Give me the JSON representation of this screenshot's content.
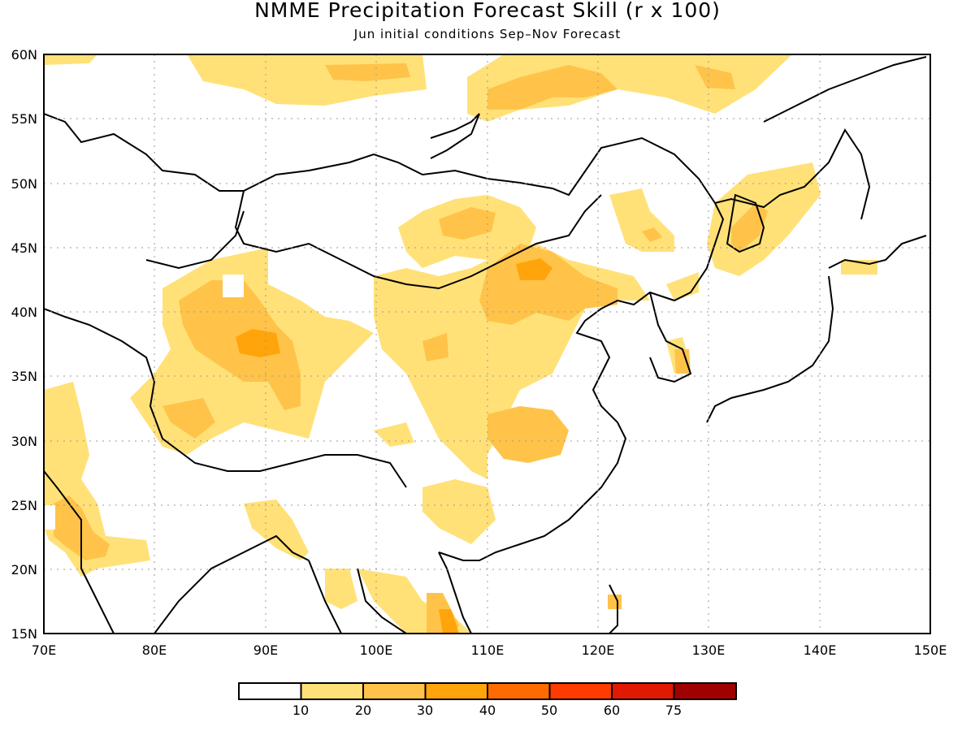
{
  "title": "NMME Precipitation Forecast Skill (r x 100)",
  "subtitle": "Jun initial conditions  Sep–Nov Forecast",
  "lat_labels": [
    "60N",
    "55N",
    "50N",
    "45N",
    "40N",
    "35N",
    "30N",
    "25N",
    "20N",
    "15N"
  ],
  "lon_labels": [
    "70E",
    "80E",
    "90E",
    "100E",
    "110E",
    "120E",
    "130E",
    "140E",
    "150E"
  ],
  "colorbar": {
    "colors": [
      "#ffffff",
      "#ffe178",
      "#ffc34a",
      "#ffa40a",
      "#ff6b00",
      "#ff3b00",
      "#e01a00",
      "#a00000"
    ],
    "labels": [
      "10",
      "20",
      "30",
      "40",
      "50",
      "60",
      "75"
    ]
  }
}
